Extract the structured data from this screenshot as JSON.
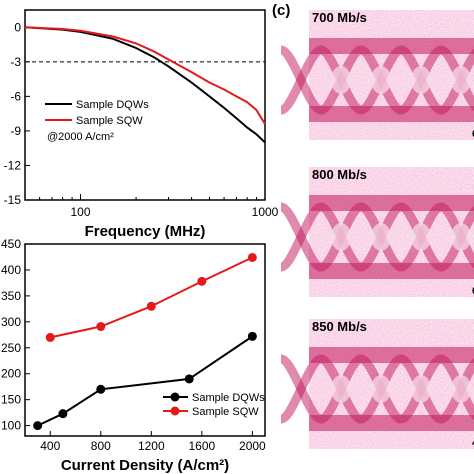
{
  "chart_data": [
    {
      "type": "line",
      "xscale": "log",
      "xlabel": "Frequency (MHz)",
      "ylabel": "",
      "xlim": [
        50,
        1000
      ],
      "ylim": [
        -15,
        1.5
      ],
      "xticks": [
        100,
        1000
      ],
      "xtick_labels": [
        "100",
        "1000"
      ],
      "yticks": [
        0,
        -3,
        -6,
        -9,
        -12,
        -15
      ],
      "ytick_labels": [
        "0",
        "-3",
        "-6",
        "-9",
        "-12",
        "-15"
      ],
      "reference_line": {
        "y": -3,
        "style": "dashed"
      },
      "series": [
        {
          "name": "Sample DQWs",
          "color": "#000000",
          "x": [
            50,
            80,
            100,
            150,
            200,
            250,
            300,
            400,
            500,
            600,
            700,
            800,
            900,
            1000
          ],
          "y": [
            0,
            -0.2,
            -0.4,
            -1.0,
            -1.8,
            -2.6,
            -3.4,
            -4.8,
            -6.0,
            -7.0,
            -7.9,
            -8.7,
            -9.3,
            -10.0
          ]
        },
        {
          "name": "Sample SQW",
          "color": "#e31a1c",
          "x": [
            50,
            80,
            100,
            150,
            200,
            250,
            300,
            400,
            500,
            600,
            700,
            800,
            900,
            1000
          ],
          "y": [
            0,
            -0.15,
            -0.3,
            -0.8,
            -1.4,
            -2.1,
            -2.8,
            -3.9,
            -4.8,
            -5.4,
            -6.0,
            -6.5,
            -7.2,
            -8.4
          ]
        }
      ],
      "legend_note": "@2000 A/cm²",
      "legend_position": "lower-left"
    },
    {
      "type": "line",
      "xlabel": "Current Density (A/cm²)",
      "ylabel": "",
      "xlim": [
        200,
        2100
      ],
      "ylim": [
        80,
        450
      ],
      "xticks": [
        400,
        800,
        1200,
        1600,
        2000
      ],
      "yticks": [
        100,
        150,
        200,
        250,
        300,
        350,
        400,
        450
      ],
      "categories_x": [
        300,
        500,
        800,
        1500,
        2000
      ],
      "series": [
        {
          "name": "Sample DQWs",
          "color": "#000000",
          "x": [
            300,
            500,
            800,
            1500,
            2000
          ],
          "y": [
            100,
            123,
            170,
            190,
            272
          ]
        },
        {
          "name": "Sample SQW",
          "color": "#e31a1c",
          "x": [
            400,
            800,
            1200,
            1600,
            2000
          ],
          "y": [
            270,
            291,
            330,
            378,
            424
          ]
        }
      ],
      "legend_position": "lower-right"
    }
  ],
  "panel_label": "(c)",
  "eye_diagrams": [
    {
      "label": "700 Mb/s",
      "corner": "6000"
    },
    {
      "label": "800 Mb/s",
      "corner": "6000"
    },
    {
      "label": "850 Mb/s",
      "corner": "4000"
    }
  ],
  "colors": {
    "eye": "#c2185b",
    "dqw": "#000000",
    "sqw": "#e31a1c"
  }
}
